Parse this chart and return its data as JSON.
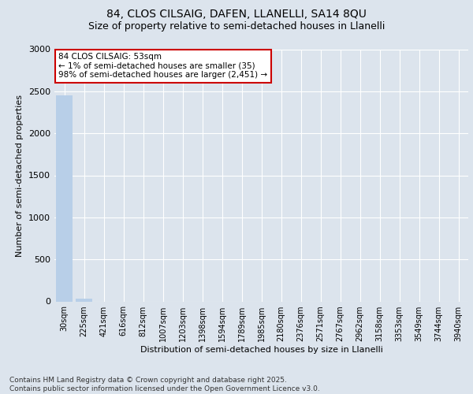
{
  "title1": "84, CLOS CILSAIG, DAFEN, LLANELLI, SA14 8QU",
  "title2": "Size of property relative to semi-detached houses in Llanelli",
  "xlabel": "Distribution of semi-detached houses by size in Llanelli",
  "ylabel": "Number of semi-detached properties",
  "categories": [
    "30sqm",
    "225sqm",
    "421sqm",
    "616sqm",
    "812sqm",
    "1007sqm",
    "1203sqm",
    "1398sqm",
    "1594sqm",
    "1789sqm",
    "1985sqm",
    "2180sqm",
    "2376sqm",
    "2571sqm",
    "2767sqm",
    "2962sqm",
    "3158sqm",
    "3353sqm",
    "3549sqm",
    "3744sqm",
    "3940sqm"
  ],
  "values": [
    2451,
    35,
    0,
    0,
    0,
    0,
    0,
    0,
    0,
    0,
    0,
    0,
    0,
    0,
    0,
    0,
    0,
    0,
    0,
    0,
    0
  ],
  "bar_color": "#b8cfe8",
  "annotation_text": "84 CLOS CILSAIG: 53sqm\n← 1% of semi-detached houses are smaller (35)\n98% of semi-detached houses are larger (2,451) →",
  "annotation_box_facecolor": "#ffffff",
  "annotation_box_edgecolor": "#cc0000",
  "footnote": "Contains HM Land Registry data © Crown copyright and database right 2025.\nContains public sector information licensed under the Open Government Licence v3.0.",
  "ylim": [
    0,
    3000
  ],
  "bg_color": "#dce4ed",
  "title_fontsize": 10,
  "subtitle_fontsize": 9,
  "axis_label_fontsize": 8,
  "tick_fontsize": 7,
  "footnote_fontsize": 6.5,
  "annotation_fontsize": 7.5
}
